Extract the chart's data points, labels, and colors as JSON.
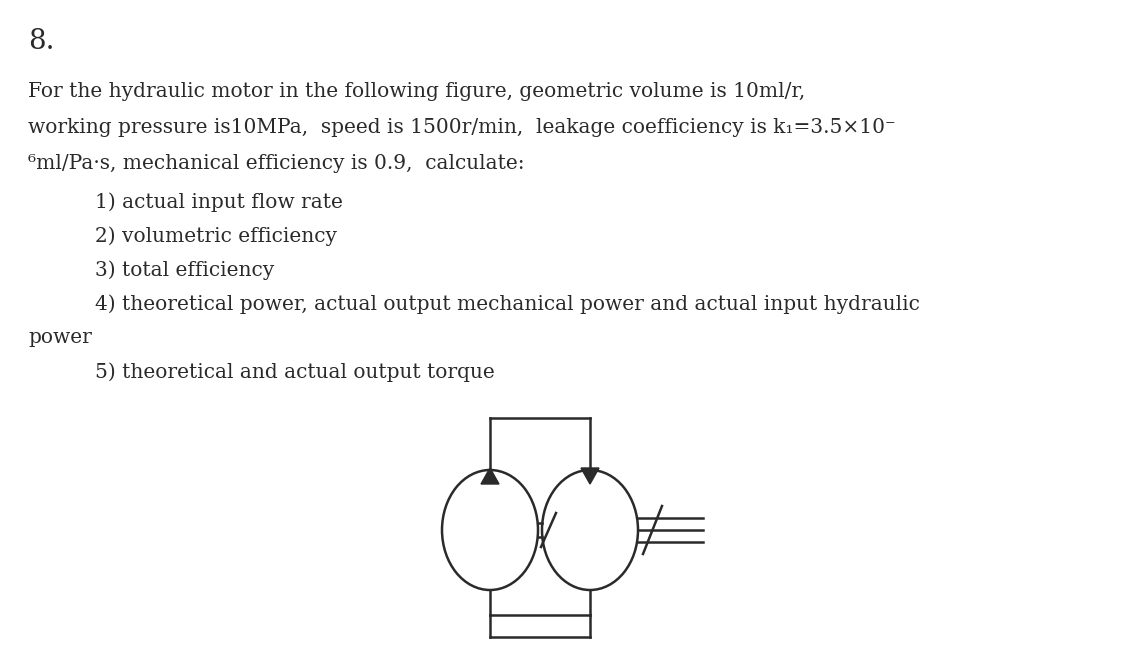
{
  "title_number": "8.",
  "title_fontsize": 20,
  "body_fontsize": 14.5,
  "indent_fontsize": 14.5,
  "background_color": "#ffffff",
  "text_color": "#2a2a2a",
  "line1": "For the hydraulic motor in the following figure, geometric volume is 10ml/r,",
  "line2": "working pressure is10MPa,  speed is 1500r/min,  leakage coefficiency is k₁=3.5×10⁻",
  "line2b": "⁶ml/Pa·s, mechanical efficiency is 0.9,  calculate:",
  "items": [
    "1) actual input flow rate",
    "2) volumetric efficiency",
    "3) total efficiency",
    "4) theoretical power, actual output mechanical power and actual input hydraulic",
    "power",
    "5) theoretical and actual output torque"
  ],
  "lw": 1.8,
  "gray": "#2a2a2a"
}
